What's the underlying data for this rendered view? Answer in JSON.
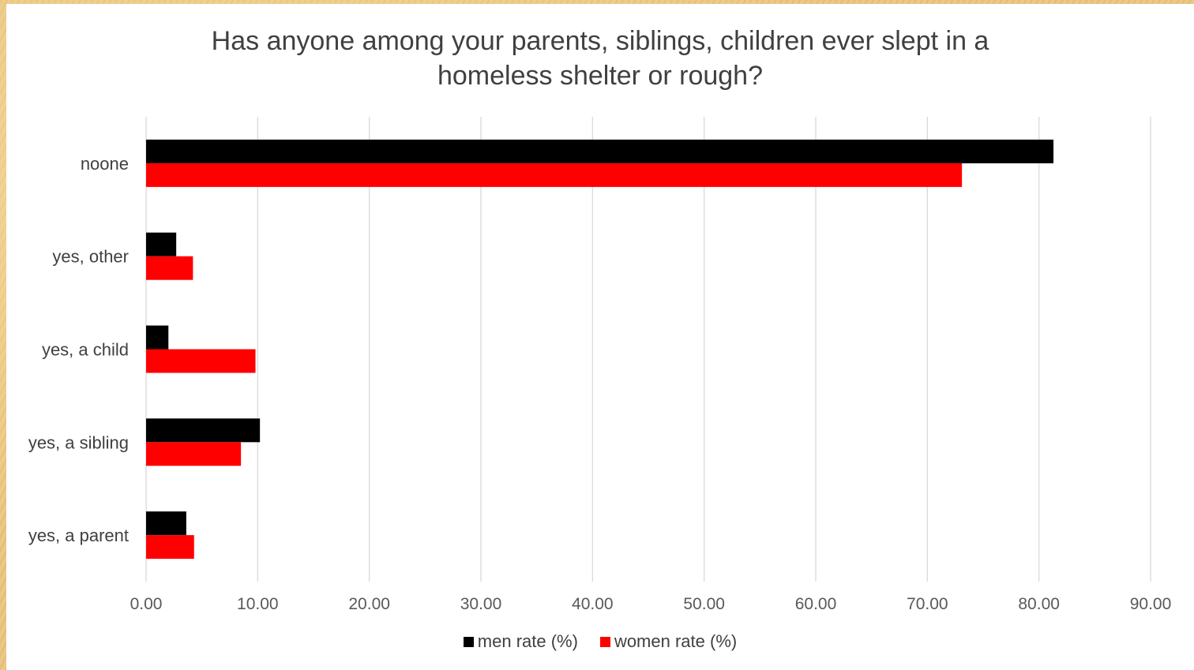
{
  "chart_data": {
    "type": "bar",
    "orientation": "horizontal",
    "title_lines": [
      "Has anyone among your parents, siblings, children ever slept in a",
      "homeless shelter or rough?"
    ],
    "categories": [
      "yes, a parent",
      "yes, a sibling",
      "yes, a child",
      "yes, other",
      "noone"
    ],
    "series": [
      {
        "name": "men rate (%)",
        "color": "#000000",
        "values": [
          3.6,
          10.2,
          2.0,
          2.7,
          81.3
        ]
      },
      {
        "name": "women rate (%)",
        "color": "#ff0000",
        "values": [
          4.3,
          8.5,
          9.8,
          4.2,
          73.1
        ]
      }
    ],
    "xlim": [
      0,
      90
    ],
    "xticks": [
      "0.00",
      "10.00",
      "20.00",
      "30.00",
      "40.00",
      "50.00",
      "60.00",
      "70.00",
      "80.00",
      "90.00"
    ],
    "grid": true,
    "legend": "bottom"
  }
}
